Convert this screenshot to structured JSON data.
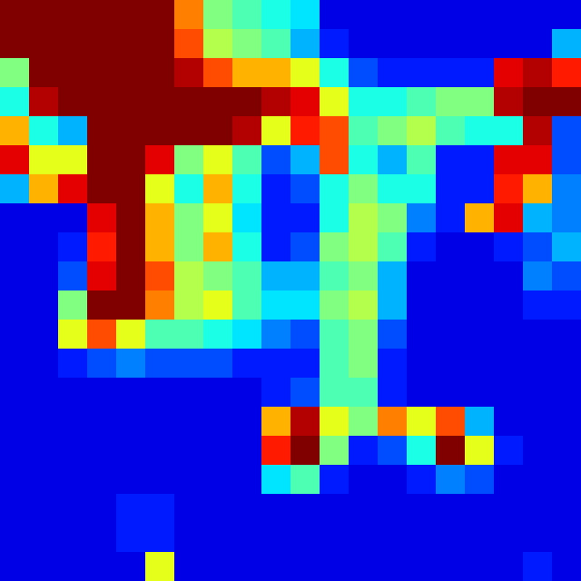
{
  "chart_data": {
    "type": "heatmap",
    "colormap": "jet",
    "vlim": [
      0,
      1
    ],
    "values": [
      [
        1,
        1,
        1,
        1,
        1,
        1,
        0.75,
        0.5,
        0.45,
        0.4,
        0.35,
        0.1,
        0.1,
        0.1,
        0.1,
        0.1,
        0.1,
        0.1,
        0.1,
        0.1
      ],
      [
        1,
        1,
        1,
        1,
        1,
        1,
        0.8,
        0.55,
        0.5,
        0.45,
        0.3,
        0.15,
        0.1,
        0.1,
        0.1,
        0.1,
        0.1,
        0.1,
        0.1,
        0.3
      ],
      [
        0.5,
        1,
        1,
        1,
        1,
        1,
        0.95,
        0.8,
        0.7,
        0.7,
        0.6,
        0.4,
        0.2,
        0.15,
        0.15,
        0.15,
        0.15,
        0.9,
        0.95,
        0.85
      ],
      [
        0.4,
        0.95,
        1,
        1,
        1,
        1,
        1,
        1,
        1,
        0.95,
        0.9,
        0.6,
        0.4,
        0.4,
        0.45,
        0.5,
        0.5,
        0.95,
        1,
        1
      ],
      [
        0.7,
        0.4,
        0.3,
        1,
        1,
        1,
        1,
        1,
        0.95,
        0.6,
        0.85,
        0.8,
        0.45,
        0.5,
        0.55,
        0.45,
        0.4,
        0.4,
        0.95,
        0.2
      ],
      [
        0.9,
        0.6,
        0.6,
        1,
        1,
        0.9,
        0.5,
        0.6,
        0.45,
        0.2,
        0.3,
        0.8,
        0.4,
        0.3,
        0.45,
        0.15,
        0.15,
        0.9,
        0.9,
        0.2
      ],
      [
        0.3,
        0.7,
        0.9,
        1,
        1,
        0.6,
        0.4,
        0.7,
        0.4,
        0.15,
        0.2,
        0.4,
        0.5,
        0.4,
        0.4,
        0.15,
        0.15,
        0.85,
        0.7,
        0.25
      ],
      [
        0.1,
        0.1,
        0.1,
        0.9,
        1,
        0.7,
        0.5,
        0.6,
        0.35,
        0.15,
        0.15,
        0.4,
        0.55,
        0.5,
        0.25,
        0.15,
        0.7,
        0.9,
        0.3,
        0.25
      ],
      [
        0.1,
        0.1,
        0.15,
        0.85,
        1,
        0.7,
        0.5,
        0.7,
        0.4,
        0.15,
        0.2,
        0.5,
        0.55,
        0.45,
        0.15,
        0.1,
        0.1,
        0.15,
        0.2,
        0.3
      ],
      [
        0.1,
        0.1,
        0.2,
        0.9,
        1,
        0.8,
        0.55,
        0.5,
        0.45,
        0.3,
        0.3,
        0.45,
        0.5,
        0.3,
        0.1,
        0.1,
        0.1,
        0.1,
        0.25,
        0.2
      ],
      [
        0.1,
        0.1,
        0.5,
        1,
        1,
        0.75,
        0.55,
        0.6,
        0.45,
        0.35,
        0.35,
        0.5,
        0.55,
        0.3,
        0.1,
        0.1,
        0.1,
        0.1,
        0.15,
        0.15
      ],
      [
        0.1,
        0.1,
        0.6,
        0.8,
        0.6,
        0.45,
        0.45,
        0.4,
        0.35,
        0.25,
        0.2,
        0.45,
        0.5,
        0.2,
        0.1,
        0.1,
        0.1,
        0.1,
        0.1,
        0.1
      ],
      [
        0.1,
        0.1,
        0.15,
        0.2,
        0.25,
        0.2,
        0.2,
        0.2,
        0.15,
        0.15,
        0.15,
        0.45,
        0.5,
        0.15,
        0.1,
        0.1,
        0.1,
        0.1,
        0.1,
        0.1
      ],
      [
        0.1,
        0.1,
        0.1,
        0.1,
        0.1,
        0.1,
        0.1,
        0.1,
        0.1,
        0.15,
        0.2,
        0.45,
        0.45,
        0.15,
        0.1,
        0.1,
        0.1,
        0.1,
        0.1,
        0.1
      ],
      [
        0.1,
        0.1,
        0.1,
        0.1,
        0.1,
        0.1,
        0.1,
        0.1,
        0.1,
        0.7,
        0.95,
        0.6,
        0.5,
        0.75,
        0.6,
        0.8,
        0.3,
        0.1,
        0.1,
        0.1
      ],
      [
        0.1,
        0.1,
        0.1,
        0.1,
        0.1,
        0.1,
        0.1,
        0.1,
        0.1,
        0.85,
        1,
        0.5,
        0.15,
        0.2,
        0.4,
        1,
        0.6,
        0.15,
        0.1,
        0.1
      ],
      [
        0.1,
        0.1,
        0.1,
        0.1,
        0.1,
        0.1,
        0.1,
        0.1,
        0.1,
        0.35,
        0.45,
        0.15,
        0.1,
        0.1,
        0.15,
        0.25,
        0.2,
        0.1,
        0.1,
        0.1
      ],
      [
        0.1,
        0.1,
        0.1,
        0.1,
        0.15,
        0.15,
        0.1,
        0.1,
        0.1,
        0.1,
        0.1,
        0.1,
        0.1,
        0.1,
        0.1,
        0.1,
        0.1,
        0.1,
        0.1,
        0.1
      ],
      [
        0.1,
        0.1,
        0.1,
        0.1,
        0.15,
        0.15,
        0.1,
        0.1,
        0.1,
        0.1,
        0.1,
        0.1,
        0.1,
        0.1,
        0.1,
        0.1,
        0.1,
        0.1,
        0.1,
        0.1
      ],
      [
        0.1,
        0.1,
        0.1,
        0.1,
        0.1,
        0.6,
        0.1,
        0.1,
        0.1,
        0.1,
        0.1,
        0.1,
        0.1,
        0.1,
        0.1,
        0.1,
        0.1,
        0.1,
        0.15,
        0.1
      ]
    ]
  }
}
